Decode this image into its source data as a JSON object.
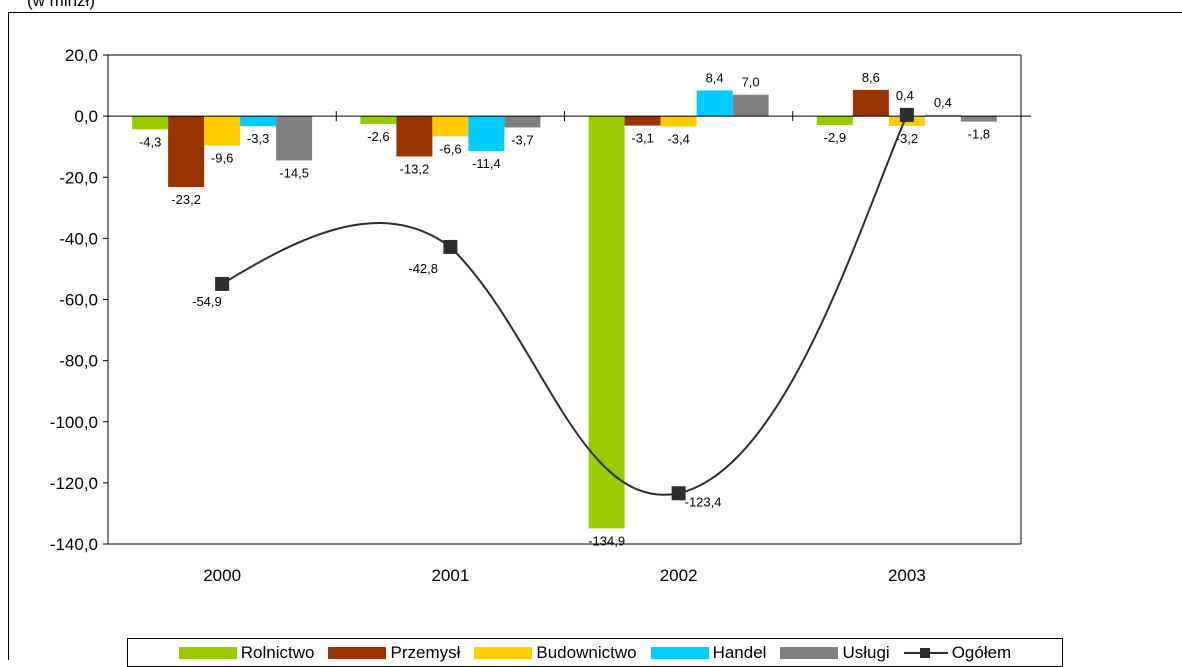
{
  "page": {
    "top_caption": "(w mlnzł)"
  },
  "chart_data": {
    "type": "bar",
    "categories": [
      "2000",
      "2001",
      "2002",
      "2003"
    ],
    "ylim": [
      -140,
      20
    ],
    "yticks": [
      20,
      0,
      -20,
      -40,
      -60,
      -80,
      -100,
      -120,
      -140
    ],
    "ytick_labels": [
      "20,0",
      "0,0",
      "-20,0",
      "-40,0",
      "-60,0",
      "-80,0",
      "-100,0",
      "-120,0",
      "-140,0"
    ],
    "legend_position": "bottom",
    "grid": false,
    "series": [
      {
        "name": "Rolnictwo",
        "type": "bar",
        "color": "#99cc00",
        "values": [
          -4.3,
          -2.6,
          -134.9,
          -2.9
        ],
        "labels": [
          "-4,3",
          "-2,6",
          "-134,9",
          "-2,9"
        ]
      },
      {
        "name": "Przemysł",
        "type": "bar",
        "color": "#993300",
        "values": [
          -23.2,
          -13.2,
          -3.1,
          8.6
        ],
        "labels": [
          "-23,2",
          "-13,2",
          "-3,1",
          "8,6"
        ]
      },
      {
        "name": "Budownictwo",
        "type": "bar",
        "color": "#ffcc00",
        "values": [
          -9.6,
          -6.6,
          -3.4,
          -3.2
        ],
        "labels": [
          "-9,6",
          "-6,6",
          "-3,4",
          "-3,2"
        ]
      },
      {
        "name": "Handel",
        "type": "bar",
        "color": "#00ccff",
        "values": [
          -3.3,
          -11.4,
          8.4,
          0.4
        ],
        "labels": [
          "-3,3",
          "-11,4",
          "8,4",
          "0,4"
        ]
      },
      {
        "name": "Usługi",
        "type": "bar",
        "color": "#808080",
        "values": [
          -14.5,
          -3.7,
          7.0,
          -1.8
        ],
        "labels": [
          "-14,5",
          "-3,7",
          "7,0",
          "-1,8"
        ]
      },
      {
        "name": "Ogółem",
        "type": "line",
        "color": "#2d2d2d",
        "values": [
          -54.9,
          -42.8,
          -123.4,
          0.4
        ],
        "labels": [
          "-54,9",
          "-42,8",
          "-123,4",
          "0,4"
        ]
      }
    ]
  }
}
